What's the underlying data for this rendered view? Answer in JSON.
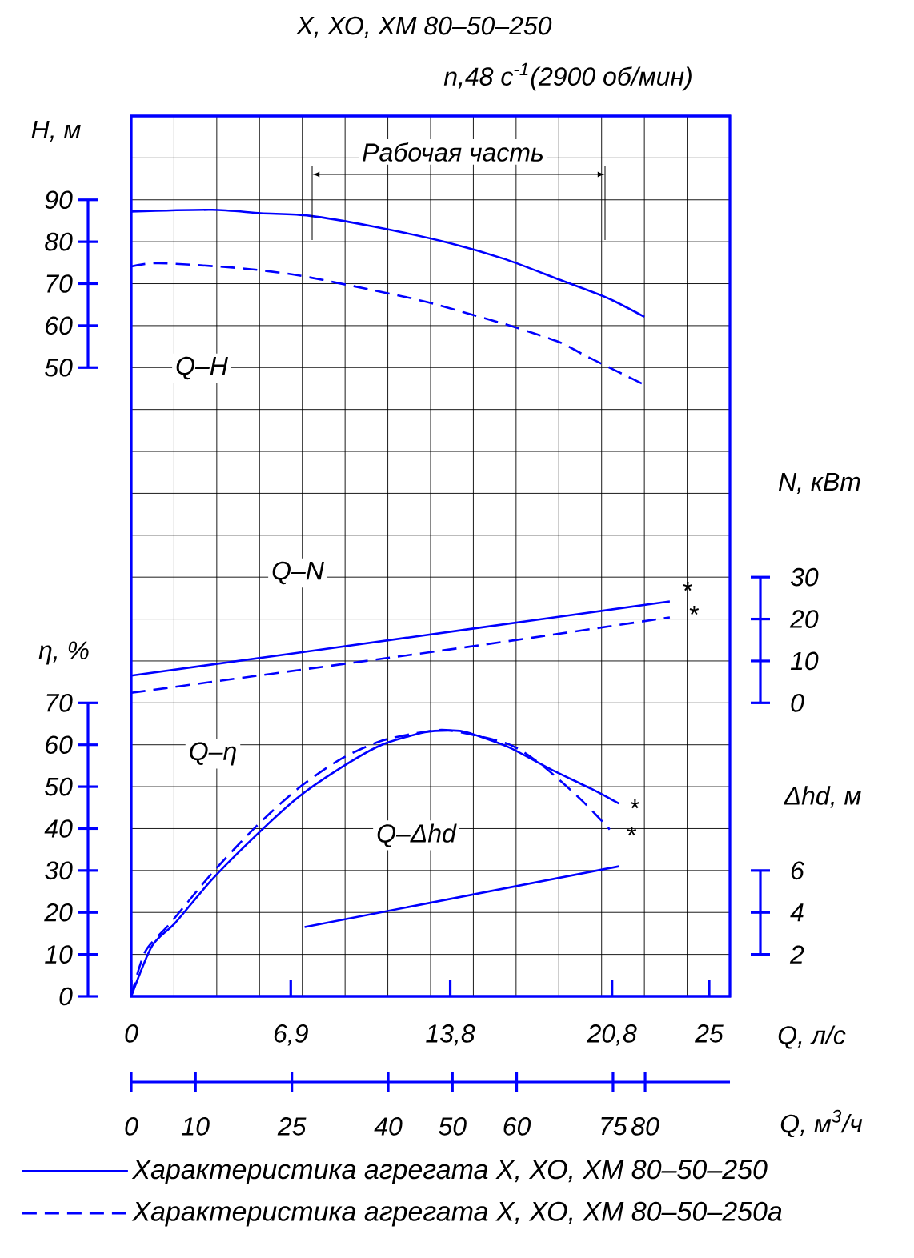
{
  "chart_data": [
    {
      "type": "line",
      "title": "Х, ХО, ХМ 80–50–250",
      "subtitle": "n,48 с$^{-1}$(2900 об/мин)",
      "xlabel": "Q, л/с",
      "x2label": "Q, м$^{3}$/ч",
      "ylabel": "H, м",
      "y2label": "N, кВт",
      "xlim": [
        0,
        25.9
      ],
      "xticks": [
        0,
        {
          "value": 6.9,
          "label": "6,9"
        },
        {
          "value": 13.8,
          "label": "13,8"
        },
        {
          "value": 20.8,
          "label": "20,8"
        },
        25
      ],
      "x2lim": [
        0,
        93.2
      ],
      "x2ticks": [
        0,
        10,
        25,
        40,
        50,
        60,
        75,
        80
      ],
      "ylim": [
        -100,
        110
      ],
      "yticks": [
        50,
        60,
        70,
        80,
        90
      ],
      "y2lim": [
        -70,
        140
      ],
      "y2ticks": [
        0,
        10,
        20,
        30
      ],
      "grid": true,
      "legend": "bottom",
      "series": [
        {
          "name": "Характеристика агрегата Х, ХО, ХМ 80–50–250",
          "color": "#0000ff",
          "line_style": "solid",
          "x": [
            0,
            3.5,
            5.6,
            7.7,
            10.5,
            13.7,
            16.2,
            18.5,
            20.6,
            22.2
          ],
          "values": [
            87.2,
            87.6,
            86.8,
            86.2,
            83.6,
            79.8,
            75.8,
            71.0,
            66.6,
            62.1
          ]
        },
        {
          "name": "Характеристика агрегата Х, ХО, ХМ 80–50–250а",
          "color": "#0000ff",
          "line_style": "dashed",
          "x": [
            0,
            1.2,
            4.7,
            7.2,
            10.5,
            12.8,
            16.2,
            18.5,
            19.7,
            22.2
          ],
          "values": [
            74.1,
            74.9,
            73.7,
            72.0,
            68.4,
            65.6,
            60.3,
            56.1,
            52.7,
            45.9
          ]
        },
        {
          "axis": "y2",
          "color": "#0000ff",
          "line_style": "solid",
          "x": [
            0,
            14.5,
            23.3
          ],
          "values": [
            6.5,
            17.5,
            24.2
          ]
        },
        {
          "axis": "y2",
          "color": "#0000ff",
          "line_style": "dashed",
          "x": [
            0,
            14.5,
            23.3
          ],
          "values": [
            2.4,
            13.3,
            20.4
          ]
        }
      ],
      "annotations": [
        "Рабочая часть",
        "Q–H",
        "Q–N",
        "*",
        "*"
      ]
    },
    {
      "type": "line",
      "ylabel": "η, %",
      "y2label": "Δhd, м",
      "tick_labels": "y",
      "xlim": [
        0,
        25.9
      ],
      "ylim": [
        0,
        210
      ],
      "yticks": [
        0,
        10,
        20,
        30,
        40,
        50,
        60,
        70
      ],
      "y2lim": [
        0,
        42
      ],
      "y2ticks": [
        2,
        4,
        6
      ],
      "series": [
        {
          "color": "#0000ff",
          "line_style": "solid",
          "x": [
            0,
            0.9,
            1.9,
            3.5,
            5.4,
            7.2,
            9.0,
            10.8,
            12.7,
            13.8,
            14.5,
            16.3,
            18.1,
            19.9,
            21.1
          ],
          "values": [
            0,
            12,
            17.5,
            27.9,
            38.4,
            47.4,
            54.3,
            59.9,
            63.0,
            63.4,
            63.0,
            59.5,
            54.3,
            49.5,
            46.0
          ]
        },
        {
          "color": "#0000ff",
          "line_style": "dashed",
          "x": [
            0,
            0.6,
            1.7,
            3.5,
            5.4,
            7.2,
            9.0,
            10.8,
            12.7,
            13.8,
            16.3,
            17.8,
            19.5,
            20.7
          ],
          "values": [
            0,
            10.6,
            17.5,
            29.4,
            40.5,
            49.5,
            56.4,
            60.9,
            63.1,
            63.4,
            60.2,
            55.0,
            46.7,
            39.8
          ]
        },
        {
          "axis": "y2",
          "color": "#0000ff",
          "line_style": "solid",
          "x": [
            7.5,
            21.1
          ],
          "values": [
            3.3,
            6.2
          ]
        }
      ],
      "annotations": [
        "Q–η",
        "Q–Δhd",
        "*",
        "*"
      ]
    }
  ]
}
